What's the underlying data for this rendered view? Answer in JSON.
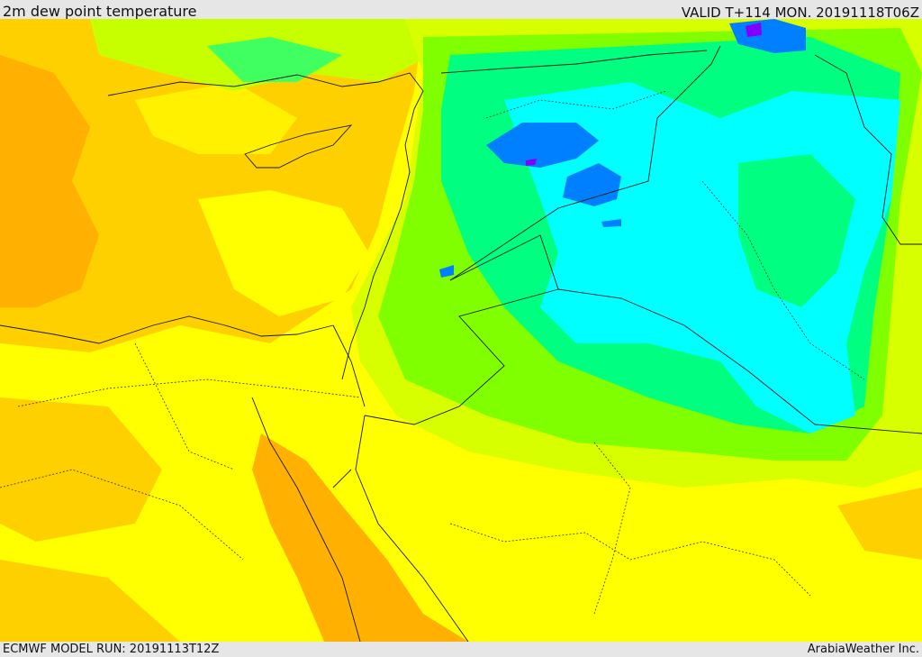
{
  "header": {
    "title": "2m dew point temperature",
    "valid": "VALID T+114 MON. 20191118T06Z"
  },
  "footer": {
    "model_run": "ECMWF MODEL RUN: 20191113T12Z",
    "credit": "ArabiaWeather Inc."
  },
  "palette": {
    "orange": "#ffb000",
    "yellow_orange": "#ffd000",
    "yellow": "#ffff00",
    "yellow_green": "#d8ff00",
    "green": "#80ff00",
    "mint": "#00ff80",
    "cyan": "#00ffff",
    "blue": "#0080ff",
    "purple": "#8000ff",
    "border": "#1a1a1a"
  }
}
